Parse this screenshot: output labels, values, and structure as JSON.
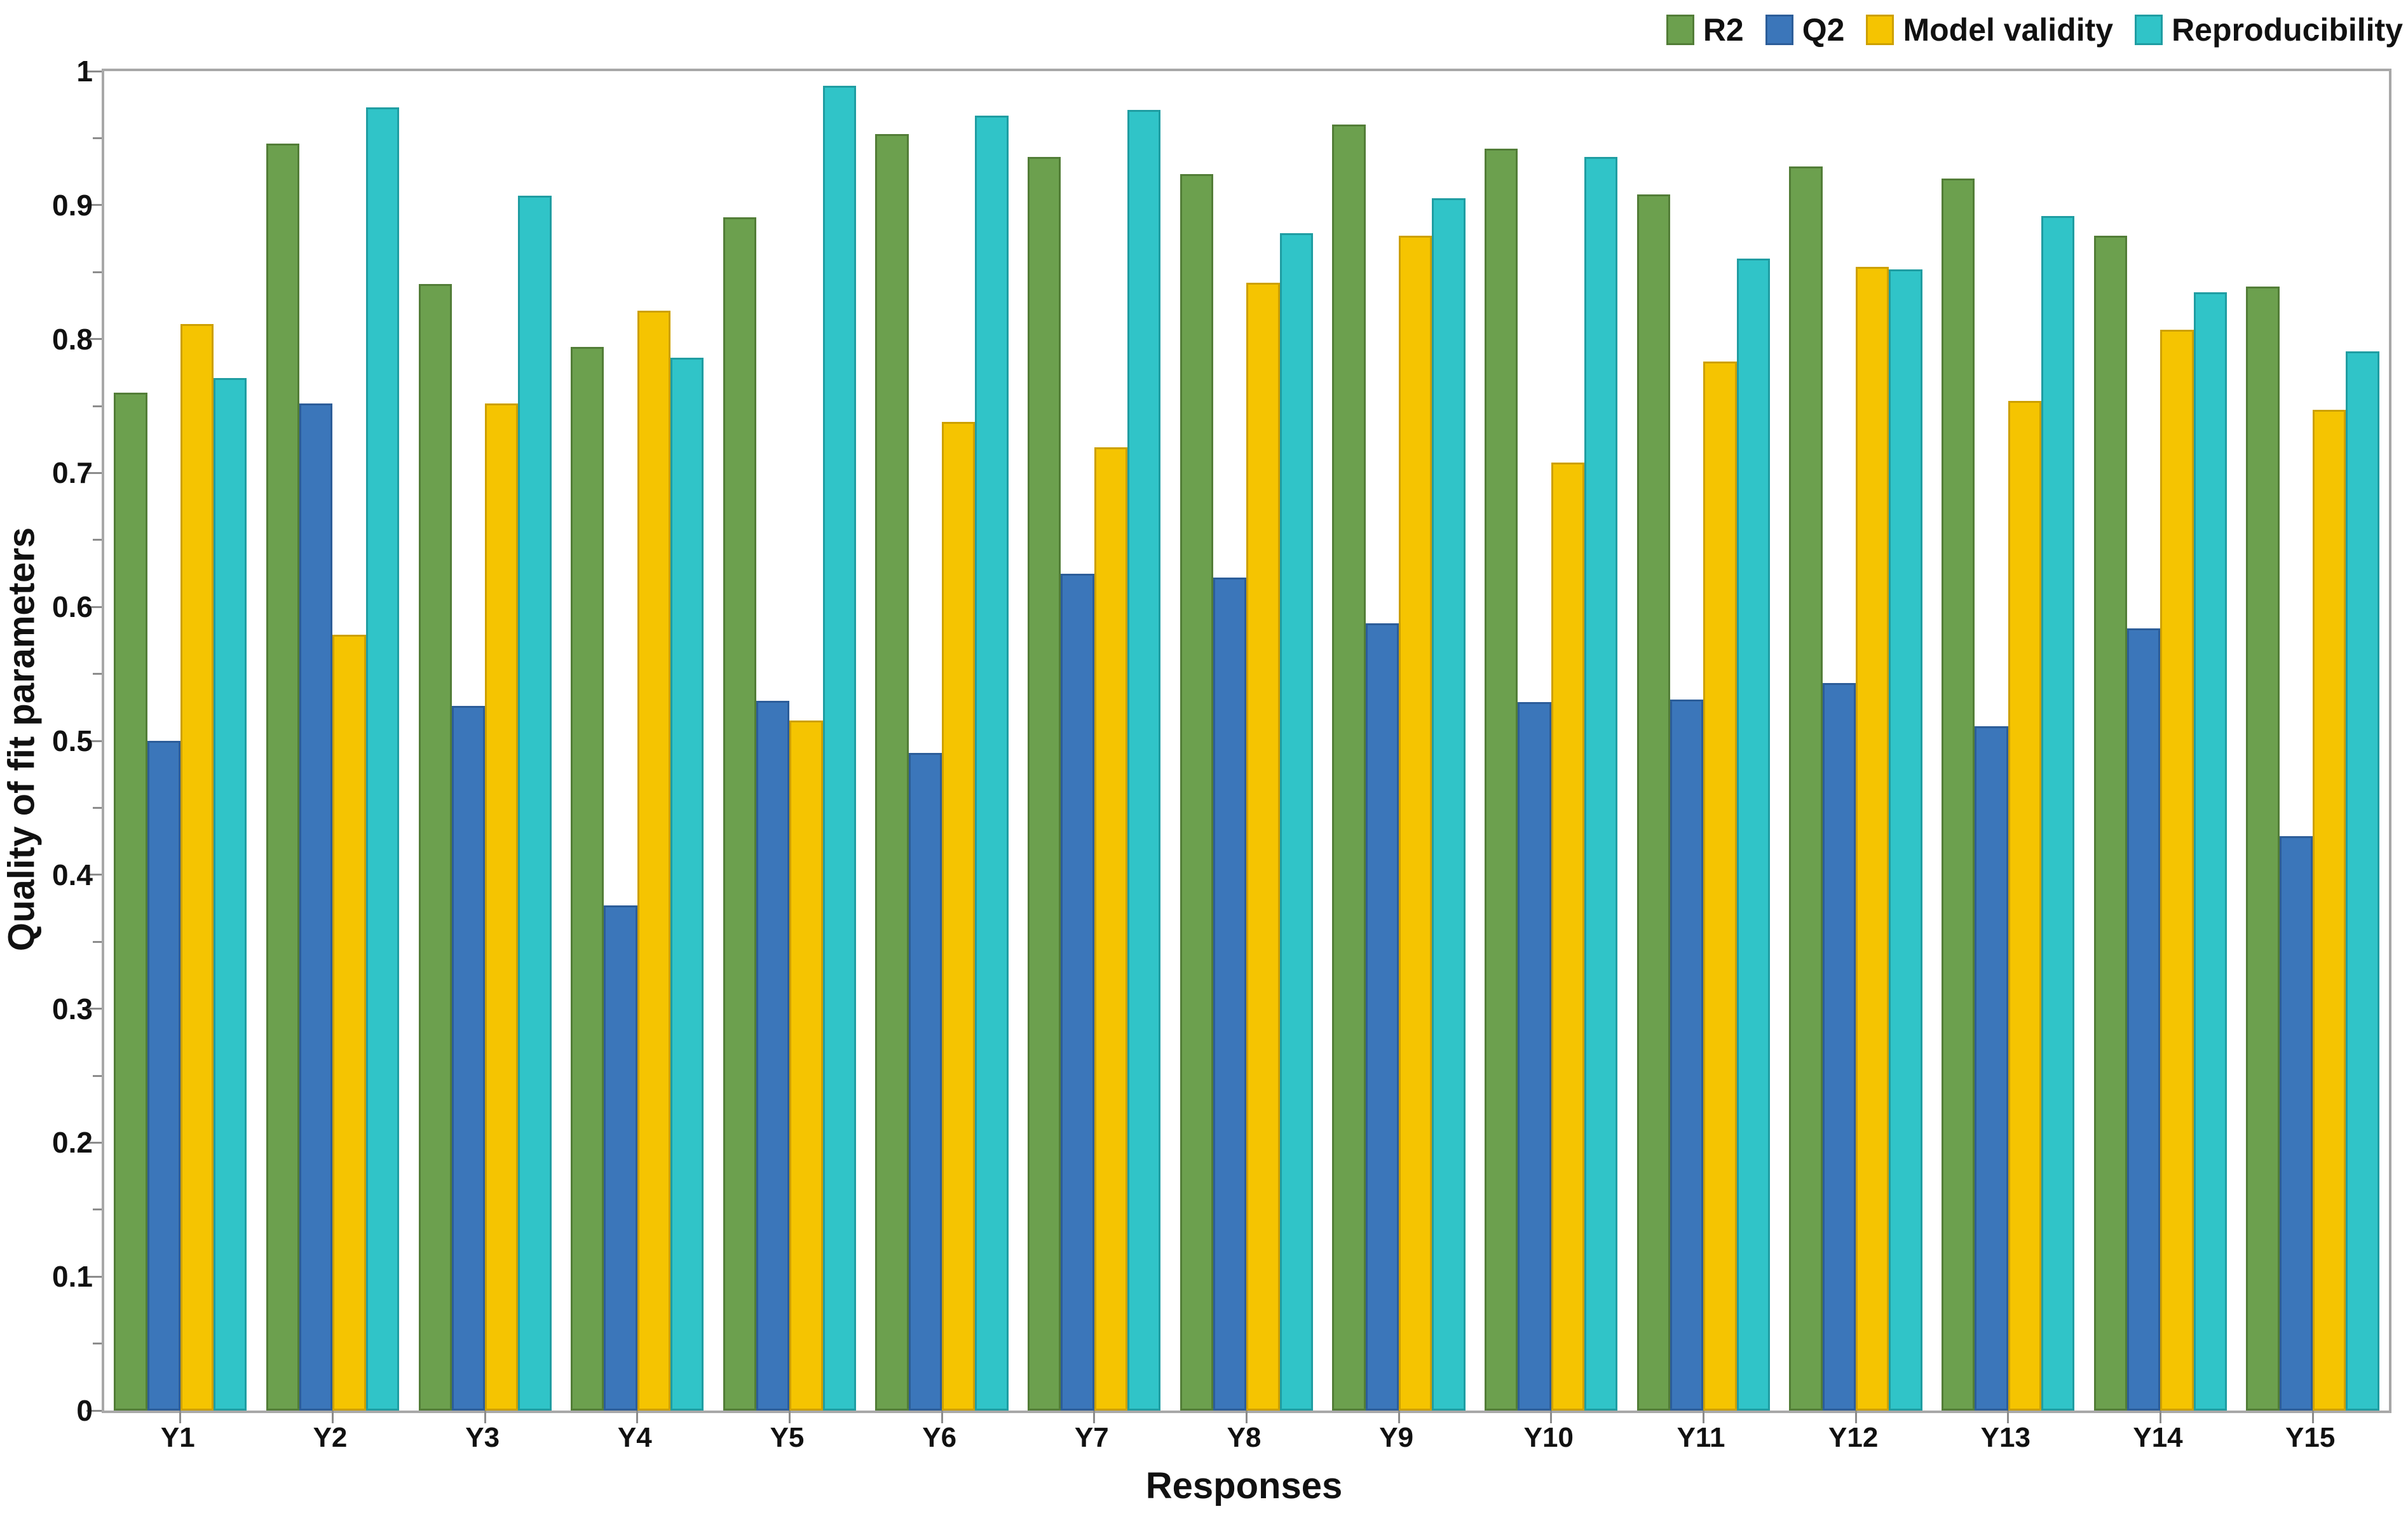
{
  "chart_data": {
    "type": "bar",
    "title": "",
    "xlabel": "Responses",
    "ylabel": "Quality of fit parameters",
    "categories": [
      "Y1",
      "Y2",
      "Y3",
      "Y4",
      "Y5",
      "Y6",
      "Y7",
      "Y8",
      "Y9",
      "Y10",
      "Y11",
      "Y12",
      "Y13",
      "Y14",
      "Y15"
    ],
    "series": [
      {
        "name": "R2",
        "color": "#6ca04e",
        "border": "#527d37",
        "values": [
          0.76,
          0.946,
          0.841,
          0.794,
          0.891,
          0.953,
          0.936,
          0.923,
          0.96,
          0.942,
          0.908,
          0.929,
          0.92,
          0.877,
          0.839
        ]
      },
      {
        "name": "Q2",
        "color": "#3b76ba",
        "border": "#2c5d99",
        "values": [
          0.5,
          0.752,
          0.526,
          0.377,
          0.53,
          0.491,
          0.625,
          0.622,
          0.588,
          0.529,
          0.531,
          0.543,
          0.511,
          0.584,
          0.429
        ]
      },
      {
        "name": "Model validity",
        "color": "#f5c401",
        "border": "#cda000",
        "values": [
          0.811,
          0.579,
          0.752,
          0.821,
          0.515,
          0.738,
          0.719,
          0.842,
          0.877,
          0.708,
          0.783,
          0.854,
          0.754,
          0.807,
          0.747
        ]
      },
      {
        "name": "Reproducibility",
        "color": "#30c4c8",
        "border": "#1f9da2",
        "values": [
          0.771,
          0.973,
          0.907,
          0.786,
          0.989,
          0.967,
          0.971,
          0.879,
          0.905,
          0.936,
          0.86,
          0.852,
          0.892,
          0.835,
          0.791
        ]
      }
    ],
    "ylim": [
      0,
      1
    ],
    "y_major_step": 0.1,
    "y_minor_step": 0.05,
    "y_tick_labels": [
      "0",
      "0.1",
      "0.2",
      "0.3",
      "0.4",
      "0.5",
      "0.6",
      "0.7",
      "0.8",
      "0.9",
      "1"
    ],
    "legend_position": "top-right",
    "grid": false
  }
}
